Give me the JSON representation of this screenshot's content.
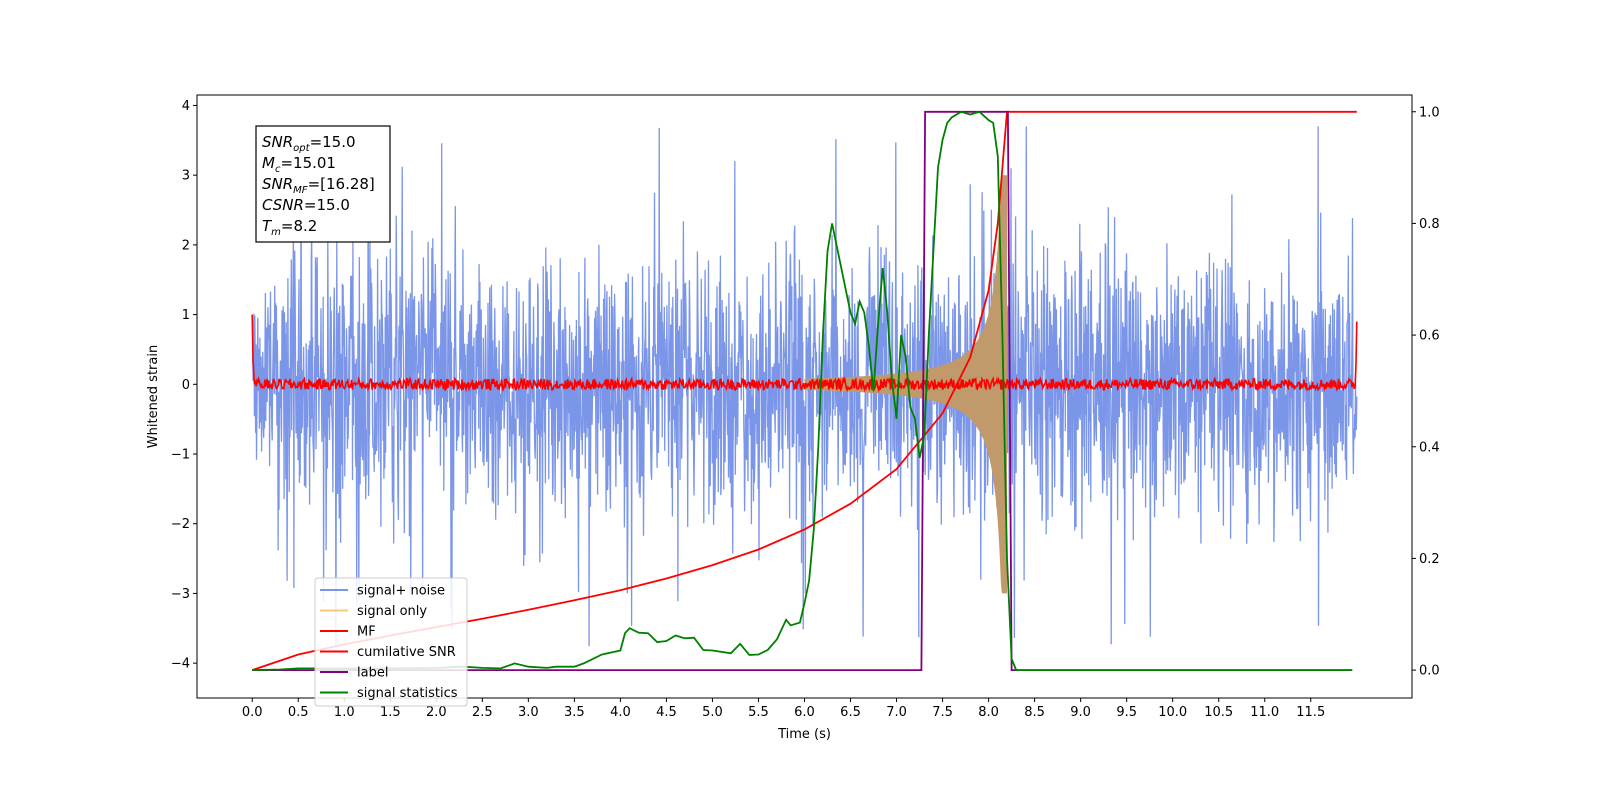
{
  "chart_data": {
    "type": "line",
    "title": "",
    "xlabel": "Time (s)",
    "ylabel": "Whitened strain",
    "ylabel_right": "",
    "xlim": [
      -0.6,
      12.6
    ],
    "ylim": [
      -4.5,
      4.15
    ],
    "ylim_right": [
      -0.05,
      1.03
    ],
    "xticks": [
      "0.0",
      "0.5",
      "1.0",
      "1.5",
      "2.0",
      "2.5",
      "3.0",
      "3.5",
      "4.0",
      "4.5",
      "5.0",
      "5.5",
      "6.0",
      "6.5",
      "7.0",
      "7.5",
      "8.0",
      "8.5",
      "9.0",
      "9.5",
      "10.0",
      "10.5",
      "11.0",
      "11.5"
    ],
    "yticks_left": [
      "4",
      "3",
      "2",
      "1",
      "0",
      "−1",
      "−2",
      "−3",
      "−4"
    ],
    "yticks_right": [
      "1.0",
      "0.8",
      "0.6",
      "0.4",
      "0.2",
      "0.0"
    ],
    "grid": false,
    "legend_position": "lower-left",
    "annotation": [
      {
        "base": "SNR",
        "sub": "opt",
        "rest": "=15.0"
      },
      {
        "base": "M",
        "sub": "c",
        "rest": "=15.01"
      },
      {
        "base": "SNR",
        "sub": "MF",
        "rest": "=[16.28]"
      },
      {
        "base": "CSNR",
        "sub": "",
        "rest": "=15.0"
      },
      {
        "base": "T",
        "sub": "m",
        "rest": "=8.2"
      }
    ],
    "series": [
      {
        "name": "signal+ noise",
        "color": "#7b96e8",
        "axis": "left",
        "x_range": [
          0.0,
          12.0
        ],
        "envelope": 2.6,
        "note_peaks": 3.8
      },
      {
        "name": "signal only",
        "color": "#f5c97a",
        "axis": "left",
        "fill": "#c19a6b",
        "x_range": [
          6.0,
          8.2
        ],
        "amplitude_at_end": 3.0
      },
      {
        "name": "MF",
        "color": "#ff0000",
        "axis": "left",
        "x_range": [
          0.0,
          12.0
        ],
        "level": 0.0,
        "noise": 0.08,
        "edge_values": [
          1.0,
          0.9
        ]
      },
      {
        "name": "cumilative SNR",
        "color": "#ff0000",
        "axis": "right",
        "x": [
          0.0,
          0.5,
          1.0,
          1.5,
          2.0,
          2.5,
          3.0,
          3.5,
          4.0,
          4.5,
          5.0,
          5.5,
          6.0,
          6.5,
          7.0,
          7.5,
          7.8,
          8.0,
          8.1,
          8.15,
          8.2,
          12.0
        ],
        "y": [
          0.0,
          0.028,
          0.046,
          0.062,
          0.077,
          0.092,
          0.108,
          0.125,
          0.143,
          0.164,
          0.188,
          0.216,
          0.252,
          0.298,
          0.36,
          0.46,
          0.56,
          0.68,
          0.8,
          0.9,
          1.0,
          1.0
        ]
      },
      {
        "name": "label",
        "color": "#800080",
        "axis": "right",
        "x": [
          0.0,
          7.27,
          7.31,
          8.21,
          8.25,
          11.95
        ],
        "y": [
          0.0,
          0.0,
          1.0,
          1.0,
          0.0,
          0.0
        ]
      },
      {
        "name": "signal statistics",
        "color": "#008000",
        "axis": "right",
        "x": [
          0.0,
          0.3,
          0.5,
          1.0,
          1.5,
          2.0,
          2.3,
          2.5,
          2.7,
          2.85,
          3.0,
          3.2,
          3.3,
          3.5,
          3.6,
          3.8,
          4.0,
          4.05,
          4.1,
          4.2,
          4.3,
          4.4,
          4.5,
          4.6,
          4.7,
          4.8,
          4.9,
          5.0,
          5.2,
          5.3,
          5.4,
          5.5,
          5.6,
          5.7,
          5.8,
          5.85,
          5.95,
          6.0,
          6.05,
          6.1,
          6.15,
          6.2,
          6.25,
          6.3,
          6.35,
          6.4,
          6.45,
          6.5,
          6.55,
          6.6,
          6.65,
          6.7,
          6.75,
          6.8,
          6.85,
          6.9,
          6.95,
          7.0,
          7.05,
          7.1,
          7.15,
          7.2,
          7.25,
          7.3,
          7.35,
          7.4,
          7.45,
          7.5,
          7.55,
          7.6,
          7.7,
          7.8,
          7.9,
          8.0,
          8.05,
          8.1,
          8.15,
          8.2,
          8.25,
          8.3,
          8.4,
          8.6,
          9.0,
          10.0,
          11.0,
          11.95
        ],
        "y": [
          0.0,
          0.001,
          0.003,
          0.003,
          0.003,
          0.004,
          0.006,
          0.004,
          0.003,
          0.012,
          0.006,
          0.004,
          0.006,
          0.006,
          0.012,
          0.028,
          0.035,
          0.066,
          0.075,
          0.067,
          0.066,
          0.05,
          0.052,
          0.062,
          0.057,
          0.058,
          0.036,
          0.035,
          0.03,
          0.047,
          0.027,
          0.028,
          0.036,
          0.055,
          0.09,
          0.08,
          0.085,
          0.12,
          0.16,
          0.25,
          0.4,
          0.6,
          0.75,
          0.8,
          0.76,
          0.72,
          0.68,
          0.64,
          0.62,
          0.66,
          0.64,
          0.58,
          0.5,
          0.62,
          0.72,
          0.64,
          0.52,
          0.45,
          0.6,
          0.56,
          0.47,
          0.45,
          0.38,
          0.42,
          0.6,
          0.75,
          0.9,
          0.95,
          0.98,
          0.99,
          1.0,
          0.995,
          1.0,
          0.985,
          0.98,
          0.92,
          0.6,
          0.2,
          0.02,
          0.0,
          0.0,
          0.0,
          0.0,
          0.0,
          0.0,
          0.0
        ]
      }
    ]
  }
}
